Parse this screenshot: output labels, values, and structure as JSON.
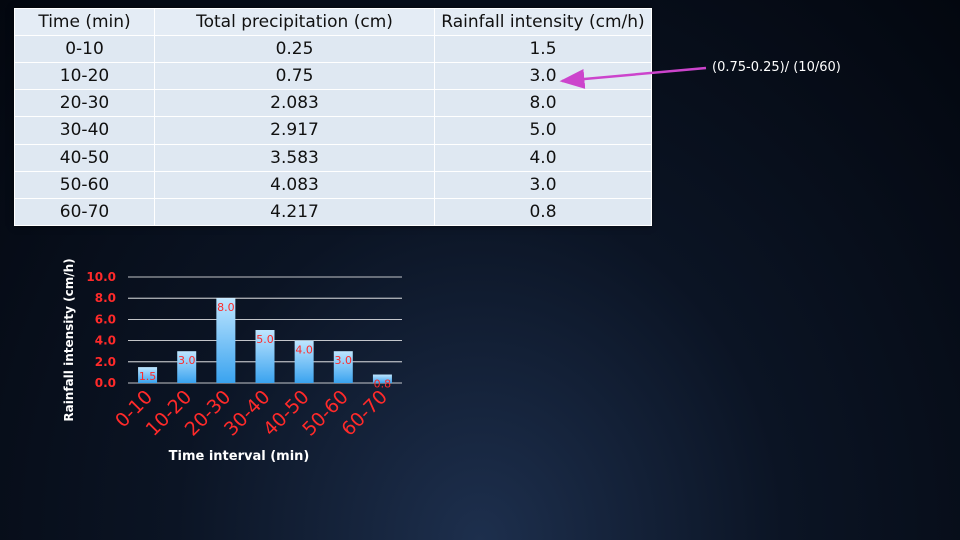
{
  "table": {
    "headers": [
      "Time (min)",
      "Total precipitation (cm)",
      "Rainfall intensity (cm/h)"
    ],
    "rows": [
      [
        "0-10",
        "0.25",
        "1.5"
      ],
      [
        "10-20",
        "0.75",
        "3.0"
      ],
      [
        "20-30",
        "2.083",
        "8.0"
      ],
      [
        "30-40",
        "2.917",
        "5.0"
      ],
      [
        "40-50",
        "3.583",
        "4.0"
      ],
      [
        "50-60",
        "4.083",
        "3.0"
      ],
      [
        "60-70",
        "4.217",
        "0.8"
      ]
    ]
  },
  "annotation": {
    "text": "(0.75-0.25)/ (10/60)",
    "arrow_color": "#cc44cc"
  },
  "colors": {
    "bar_top": "#bfe6ff",
    "bar_bottom": "#3aa3ef",
    "label_red": "#ff2a2a",
    "grid": "#ffffff"
  },
  "chart_data": {
    "type": "bar",
    "categories": [
      "0-10",
      "10-20",
      "20-30",
      "30-40",
      "40-50",
      "50-60",
      "60-70"
    ],
    "values": [
      1.5,
      3.0,
      8.0,
      5.0,
      4.0,
      3.0,
      0.8
    ],
    "data_labels": [
      "1.5",
      "3.0",
      "8.0",
      "5.0",
      "4.0",
      "3.0",
      "0.8"
    ],
    "title": "",
    "xlabel": "Time interval (min)",
    "ylabel": "Rainfall intensity (cm/h)",
    "ylim": [
      0,
      10
    ],
    "yticks": [
      "0.0",
      "2.0",
      "4.0",
      "6.0",
      "8.0",
      "10.0"
    ],
    "grid": true
  }
}
